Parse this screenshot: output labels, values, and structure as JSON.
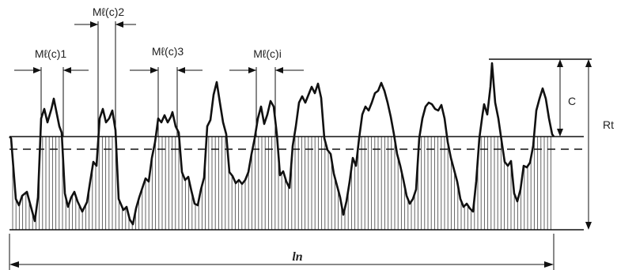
{
  "labels": {
    "ml_c1": "Mℓ(c)1",
    "ml_c2": "Mℓ(c)2",
    "ml_c3": "Mℓ(c)3",
    "ml_ci": "Mℓ(c)i",
    "c": "C",
    "rt": "Rt",
    "ln": "ln"
  }
}
